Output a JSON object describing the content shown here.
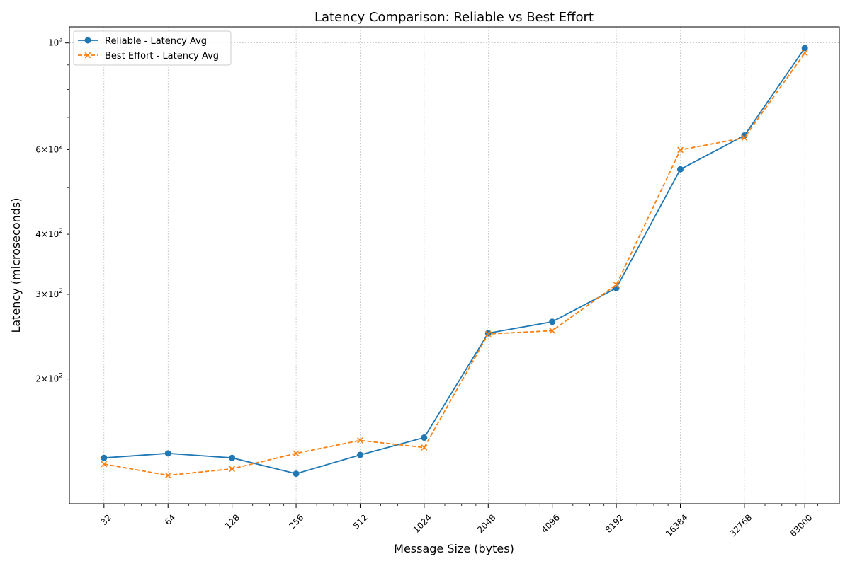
{
  "chart_data": {
    "type": "line",
    "title": "Latency Comparison: Reliable vs Best Effort",
    "xlabel": "Message Size (bytes)",
    "ylabel": "Latency (microseconds)",
    "x_scale": "log2",
    "y_scale": "log",
    "x": [
      32,
      64,
      128,
      256,
      512,
      1024,
      2048,
      4096,
      8192,
      16384,
      32768,
      63000
    ],
    "x_tick_labels": [
      "32",
      "64",
      "128",
      "256",
      "512",
      "1024",
      "2048",
      "4096",
      "8192",
      "16384",
      "32768",
      "63000"
    ],
    "ylim": [
      110,
      1080
    ],
    "y_ticks": [
      {
        "value": 200,
        "base": "2",
        "exp": "2"
      },
      {
        "value": 300,
        "base": "3",
        "exp": "2"
      },
      {
        "value": 400,
        "base": "4",
        "exp": "2"
      },
      {
        "value": 600,
        "base": "6",
        "exp": "2"
      },
      {
        "value": 1000,
        "base": "10",
        "exp": "3"
      }
    ],
    "grid": true,
    "legend_position": "upper-left",
    "series": [
      {
        "name": "Reliable - Latency Avg",
        "color": "#1f77b4",
        "marker": "circle",
        "linestyle": "solid",
        "values": [
          137,
          140,
          137,
          127,
          139,
          151,
          249,
          263,
          309,
          546,
          642,
          976
        ]
      },
      {
        "name": "Best Effort - Latency Avg",
        "color": "#ff7f0e",
        "marker": "x",
        "linestyle": "dashed",
        "values": [
          133,
          126,
          130,
          140,
          149,
          144,
          248,
          252,
          314,
          599,
          635,
          953
        ]
      }
    ]
  }
}
